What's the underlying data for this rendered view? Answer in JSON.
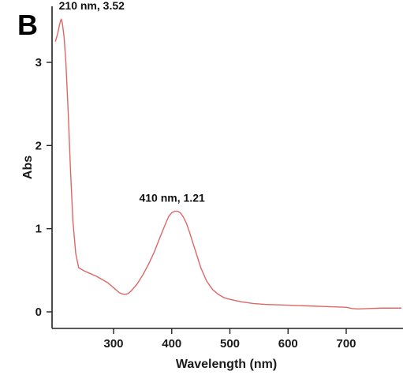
{
  "panel_label": "B",
  "chart_data": {
    "type": "line",
    "title": "",
    "xlabel": "Wavelength (nm)",
    "ylabel": "Abs",
    "xlim": [
      200,
      795
    ],
    "ylim": [
      -0.2,
      3.75
    ],
    "x_ticks": [
      300,
      400,
      500,
      600,
      700
    ],
    "y_ticks": [
      0,
      1,
      2,
      3
    ],
    "grid": false,
    "legend": "none",
    "series": [
      {
        "color": "#e06666",
        "x": [
          200,
          204,
          207,
          209,
          210,
          212,
          215,
          218,
          222,
          226,
          230,
          235,
          240,
          250,
          260,
          270,
          280,
          290,
          300,
          305,
          310,
          315,
          320,
          325,
          330,
          340,
          350,
          360,
          370,
          380,
          390,
          395,
          400,
          405,
          410,
          415,
          420,
          425,
          430,
          440,
          450,
          460,
          470,
          480,
          490,
          500,
          520,
          540,
          560,
          580,
          600,
          620,
          640,
          660,
          680,
          700,
          710,
          720,
          740,
          760,
          780,
          795
        ],
        "y": [
          3.25,
          3.35,
          3.45,
          3.5,
          3.52,
          3.47,
          3.3,
          3.0,
          2.4,
          1.7,
          1.1,
          0.7,
          0.53,
          0.49,
          0.46,
          0.43,
          0.39,
          0.35,
          0.29,
          0.26,
          0.23,
          0.215,
          0.21,
          0.22,
          0.25,
          0.33,
          0.44,
          0.57,
          0.72,
          0.9,
          1.07,
          1.15,
          1.19,
          1.21,
          1.21,
          1.19,
          1.14,
          1.07,
          0.97,
          0.75,
          0.53,
          0.37,
          0.27,
          0.21,
          0.17,
          0.15,
          0.12,
          0.1,
          0.09,
          0.085,
          0.08,
          0.075,
          0.07,
          0.065,
          0.06,
          0.055,
          0.04,
          0.035,
          0.04,
          0.045,
          0.045,
          0.045
        ]
      }
    ],
    "annotations": [
      {
        "text": "210 nm, 3.52",
        "x": 210,
        "y": 3.52
      },
      {
        "text": "410 nm, 1.21",
        "x": 410,
        "y": 1.21
      }
    ]
  }
}
